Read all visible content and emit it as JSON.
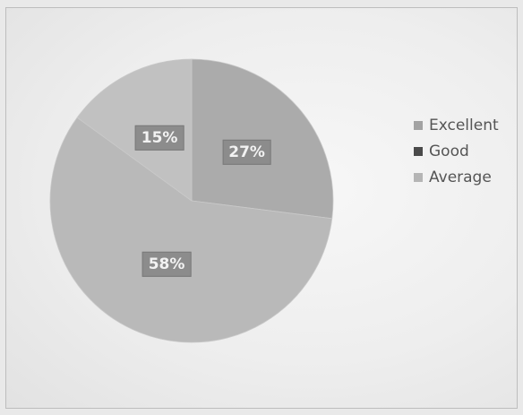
{
  "chart_data": {
    "type": "pie",
    "title": "",
    "slices": [
      {
        "name": "Excellent",
        "value": 27,
        "label": "27%",
        "color": "#ababab"
      },
      {
        "name": "Average",
        "value": 58,
        "label": "58%",
        "color": "#b9b9b9"
      },
      {
        "name": "Good",
        "value": 15,
        "label": "15%",
        "color": "#c1c1c1"
      }
    ],
    "legend": {
      "position": "right",
      "items": [
        {
          "name": "Excellent",
          "color": "#a3a3a3"
        },
        {
          "name": "Good",
          "color": "#4a4a4a"
        },
        {
          "name": "Average",
          "color": "#b5b5b5"
        }
      ]
    }
  }
}
